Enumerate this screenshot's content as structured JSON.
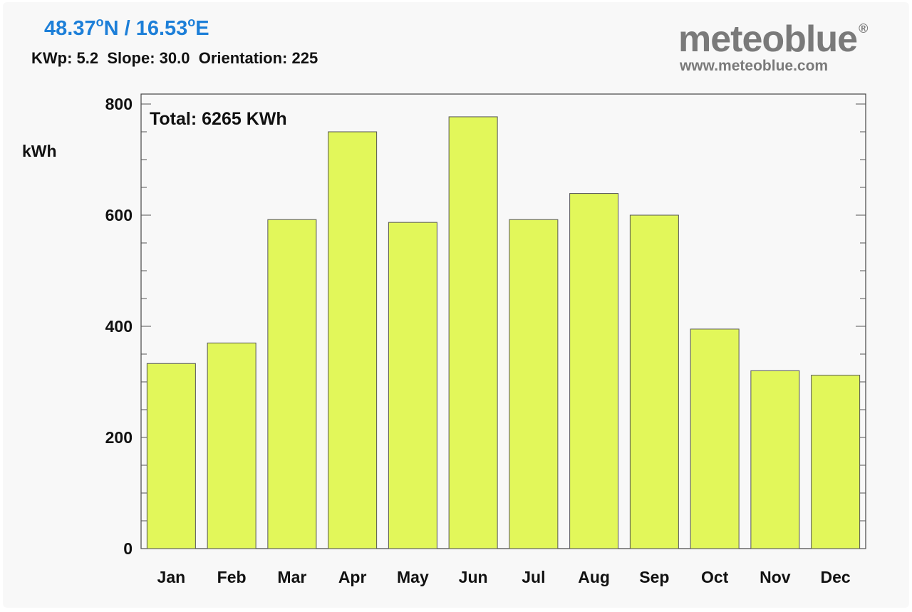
{
  "header": {
    "lat": "48.37",
    "lat_suffix": "N",
    "separator": "/",
    "lon": "16.53",
    "lon_suffix": "E",
    "degree_symbol": "o",
    "params": "KWp: 5.2  Slope: 30.0  Orientation: 225"
  },
  "brand": {
    "name": "meteoblue",
    "registered": "®",
    "url": "www.meteoblue.com"
  },
  "chart_data": {
    "type": "bar",
    "ylabel": "kWh",
    "annotation": "Total: 6265 KWh",
    "categories": [
      "Jan",
      "Feb",
      "Mar",
      "Apr",
      "May",
      "Jun",
      "Jul",
      "Aug",
      "Sep",
      "Oct",
      "Nov",
      "Dec"
    ],
    "values": [
      333,
      370,
      592,
      750,
      587,
      777,
      592,
      639,
      600,
      395,
      320,
      312
    ],
    "ylim": [
      0,
      800
    ],
    "yticks": [
      0,
      200,
      400,
      600,
      800
    ],
    "bar_color": "#e2f75a",
    "grid": false
  }
}
